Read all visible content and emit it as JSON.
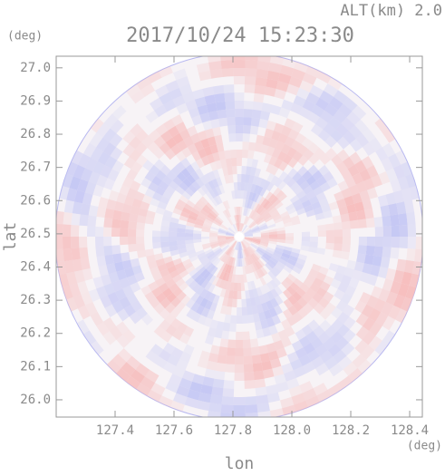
{
  "chart_data": {
    "type": "map",
    "subtitle": "ALT(km) 2.0",
    "title": "2017/10/24 15:23:30",
    "y_unit": "(deg)",
    "x_unit": "(deg)",
    "xlabel": "lon",
    "ylabel": "lat",
    "xlim": [
      127.2,
      128.443
    ],
    "ylim": [
      25.948,
      27.035
    ],
    "xticks": [
      127.4,
      127.6,
      127.8,
      {
        "value": 128.0,
        "label": "128.0"
      },
      128.2,
      128.4
    ],
    "yticks": [
      {
        "value": 26.0,
        "label": "26.0"
      },
      26.1,
      26.2,
      26.3,
      26.4,
      26.5,
      26.6,
      26.7,
      26.8,
      26.9,
      {
        "value": 27.0,
        "label": "27.0"
      }
    ]
  }
}
